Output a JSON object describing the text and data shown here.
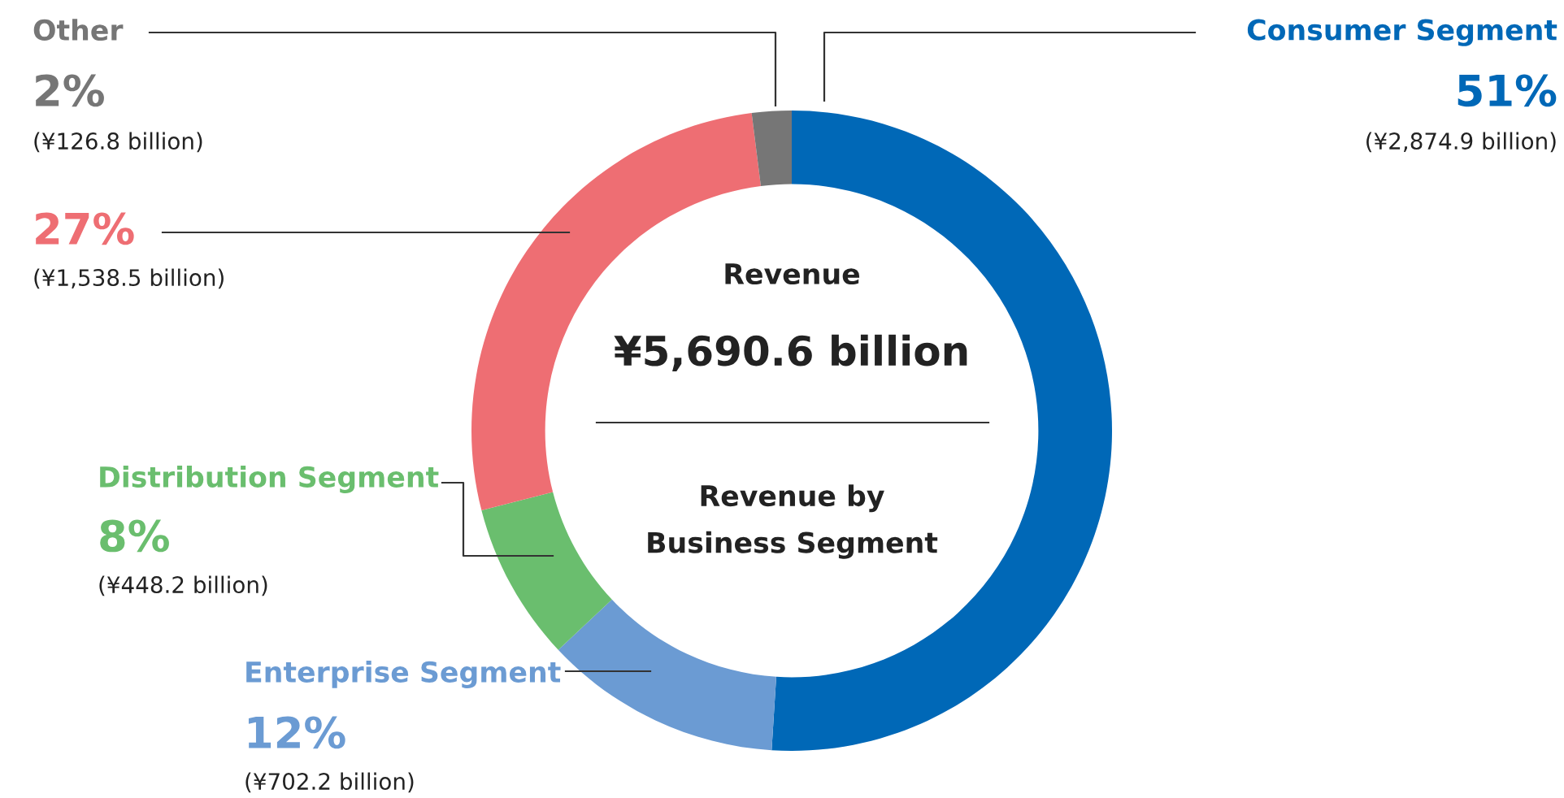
{
  "chart_data": {
    "type": "donut",
    "title": "Revenue by Business Segment",
    "subtitle": "Revenue",
    "categories": [
      "Consumer Segment",
      "Enterprise Segment",
      "Distribution Segment",
      null,
      "Other"
    ],
    "values": [
      51,
      12,
      8,
      27,
      2
    ],
    "colors": [
      "#0068b7",
      "#6b9bd3",
      "#6abe6e",
      "#ee6e73",
      "#767676"
    ],
    "value_labels": [
      "51%",
      "12%",
      "8%",
      "27%",
      "2%"
    ],
    "annotations": [
      "¥5,690.6 billion",
      "(¥2,874.9 billion)",
      "(¥702.2 billion)",
      "(¥448.2 billion)",
      "(¥1,538.5 billion)",
      "(¥126.8 billion)"
    ],
    "legend": false
  }
}
